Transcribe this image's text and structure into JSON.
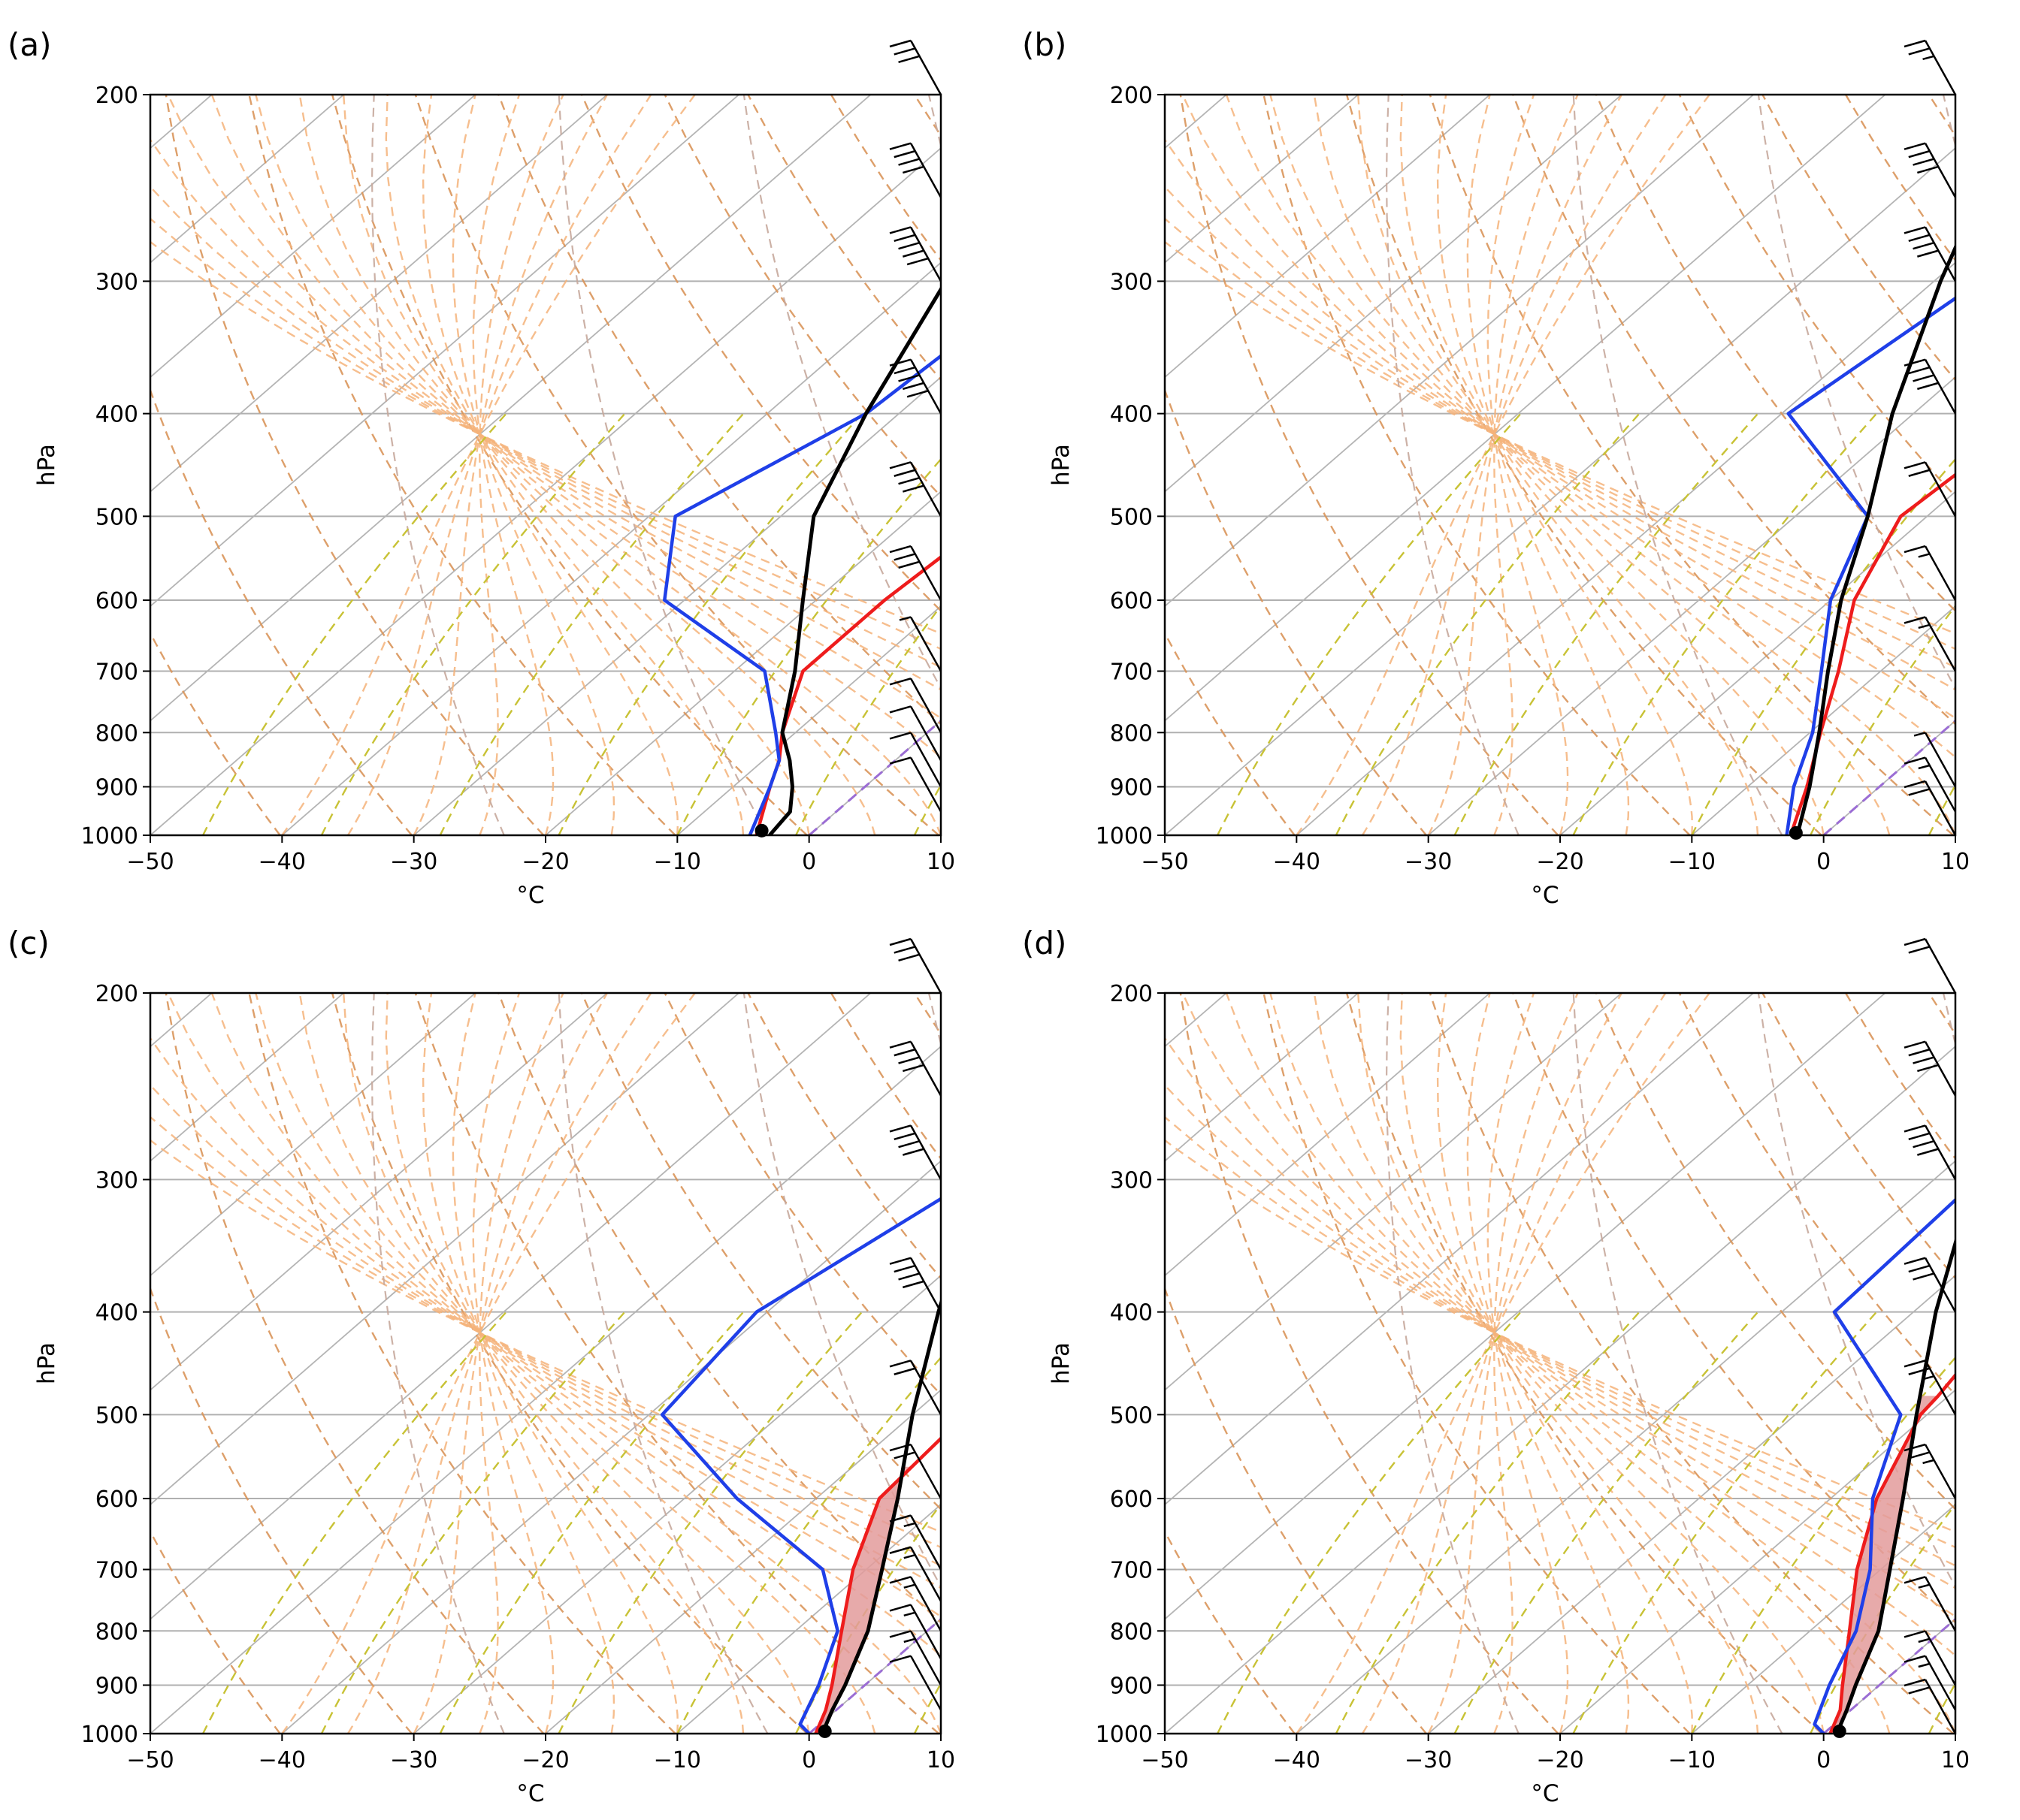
{
  "figure": {
    "description_units": {
      "x": "°C",
      "y": "hPa"
    },
    "colors": {
      "temperature": "#ee1c1c",
      "dewpoint": "#1f3fe8",
      "parcel": "#000000",
      "dry_adiabat": "#d9955a",
      "moist_adiabat": "#f5b37a",
      "mixing_ratio": "#c8c235",
      "isotherm_0": "#9b6dd4",
      "cape_fill": "#e39b9b",
      "grid": "#b0b0b0",
      "skewed_isotherm": "#b4b4b4",
      "alt_adiabat": "#c7a89c"
    }
  },
  "chart_data": [
    {
      "type": "line",
      "panel_label": "(a)",
      "title": "",
      "xlabel": "°C",
      "ylabel": "hPa",
      "xlim": [
        -50,
        10
      ],
      "ylim": [
        1000,
        200
      ],
      "xticks": [
        "−50",
        "−40",
        "−30",
        "−20",
        "−10",
        "0",
        "10"
      ],
      "yticks": [
        "200",
        "300",
        "400",
        "500",
        "600",
        "700",
        "800",
        "900",
        "1000"
      ],
      "series": [
        {
          "name": "Temperature",
          "color": "#ee1c1c",
          "points": [
            [
              1000,
              -4.0
            ],
            [
              900,
              -7.2
            ],
            [
              850,
              -8.8
            ],
            [
              800,
              -11.0
            ],
            [
              700,
              -14.8
            ],
            [
              600,
              -14.8
            ],
            [
              500,
              -13.8
            ],
            [
              400,
              -17.0
            ],
            [
              300,
              -19.7
            ],
            [
              250,
              -18.0
            ],
            [
              200,
              -9.3
            ]
          ]
        },
        {
          "name": "Dewpoint",
          "color": "#1f3fe8",
          "points": [
            [
              1000,
              -4.5
            ],
            [
              900,
              -7.2
            ],
            [
              850,
              -8.8
            ],
            [
              800,
              -11.5
            ],
            [
              700,
              -17.7
            ],
            [
              600,
              -31.5
            ],
            [
              500,
              -38.0
            ],
            [
              400,
              -32.5
            ],
            [
              300,
              -31.0
            ],
            [
              250,
              -32.6
            ],
            [
              200,
              -32.2
            ]
          ]
        },
        {
          "name": "Parcel",
          "color": "#000000",
          "points": [
            [
              1000,
              -3.0
            ],
            [
              950,
              -3.5
            ],
            [
              900,
              -5.5
            ],
            [
              850,
              -8.0
            ],
            [
              800,
              -11.0
            ],
            [
              700,
              -15.4
            ],
            [
              600,
              -21.0
            ],
            [
              500,
              -27.5
            ],
            [
              400,
              -32.5
            ],
            [
              300,
              -38.0
            ],
            [
              250,
              -40.8
            ],
            [
              200,
              -43.5
            ]
          ]
        }
      ],
      "surface_marker": {
        "pressure": 990,
        "temperature": -4.0
      },
      "cape_shading": false,
      "wind_barbs": [
        {
          "pressure": 200,
          "speed_kt": 30
        },
        {
          "pressure": 250,
          "speed_kt": 40
        },
        {
          "pressure": 300,
          "speed_kt": 50
        },
        {
          "pressure": 400,
          "speed_kt": 50
        },
        {
          "pressure": 500,
          "speed_kt": 40
        },
        {
          "pressure": 600,
          "speed_kt": 30
        },
        {
          "pressure": 700,
          "speed_kt": 5
        },
        {
          "pressure": 800,
          "speed_kt": 10
        },
        {
          "pressure": 850,
          "speed_kt": 10
        },
        {
          "pressure": 900,
          "speed_kt": 10
        },
        {
          "pressure": 950,
          "speed_kt": 10
        }
      ]
    },
    {
      "type": "line",
      "panel_label": "(b)",
      "title": "",
      "xlabel": "°C",
      "ylabel": "hPa",
      "xlim": [
        -50,
        10
      ],
      "ylim": [
        1000,
        200
      ],
      "xticks": [
        "−50",
        "−40",
        "−30",
        "−20",
        "−10",
        "0",
        "10"
      ],
      "yticks": [
        "200",
        "300",
        "400",
        "500",
        "600",
        "700",
        "800",
        "900",
        "1000"
      ],
      "series": [
        {
          "name": "Temperature",
          "color": "#ee1c1c",
          "points": [
            [
              1000,
              -2.5
            ],
            [
              900,
              -5.5
            ],
            [
              800,
              -9.2
            ],
            [
              700,
              -13.2
            ],
            [
              600,
              -18.2
            ],
            [
              500,
              -22.0
            ],
            [
              400,
              -20.7
            ],
            [
              300,
              -17.5
            ],
            [
              250,
              -13.5
            ],
            [
              200,
              -7.0
            ]
          ]
        },
        {
          "name": "Dewpoint",
          "color": "#1f3fe8",
          "points": [
            [
              1000,
              -2.8
            ],
            [
              900,
              -6.5
            ],
            [
              800,
              -9.8
            ],
            [
              700,
              -14.5
            ],
            [
              600,
              -20.0
            ],
            [
              500,
              -24.5
            ],
            [
              400,
              -39.5
            ],
            [
              300,
              -36.5
            ],
            [
              250,
              -36.0
            ],
            [
              200,
              -32.7
            ]
          ]
        },
        {
          "name": "Parcel",
          "color": "#000000",
          "points": [
            [
              1000,
              -2.0
            ],
            [
              900,
              -5.3
            ],
            [
              800,
              -9.3
            ],
            [
              700,
              -14.0
            ],
            [
              600,
              -19.2
            ],
            [
              500,
              -24.5
            ],
            [
              400,
              -31.6
            ],
            [
              300,
              -39.5
            ],
            [
              250,
              -44.0
            ],
            [
              200,
              -50.0
            ]
          ]
        }
      ],
      "surface_marker": {
        "pressure": 995,
        "temperature": -2.3
      },
      "cape_shading": false,
      "wind_barbs": [
        {
          "pressure": 200,
          "speed_kt": 25
        },
        {
          "pressure": 250,
          "speed_kt": 40
        },
        {
          "pressure": 300,
          "speed_kt": 40
        },
        {
          "pressure": 400,
          "speed_kt": 40
        },
        {
          "pressure": 500,
          "speed_kt": 20
        },
        {
          "pressure": 600,
          "speed_kt": 15
        },
        {
          "pressure": 700,
          "speed_kt": 15
        },
        {
          "pressure": 900,
          "speed_kt": 5
        },
        {
          "pressure": 950,
          "speed_kt": 15
        },
        {
          "pressure": 1000,
          "speed_kt": 20
        }
      ]
    },
    {
      "type": "line",
      "panel_label": "(c)",
      "title": "",
      "xlabel": "°C",
      "ylabel": "hPa",
      "xlim": [
        -50,
        10
      ],
      "ylim": [
        1000,
        200
      ],
      "xticks": [
        "−50",
        "−40",
        "−30",
        "−20",
        "−10",
        "0",
        "10"
      ],
      "yticks": [
        "200",
        "300",
        "400",
        "500",
        "600",
        "700",
        "800",
        "900",
        "1000"
      ],
      "series": [
        {
          "name": "Temperature",
          "color": "#ee1c1c",
          "points": [
            [
              1000,
              0.5
            ],
            [
              950,
              -0.8
            ],
            [
              900,
              -2.5
            ],
            [
              800,
              -6.5
            ],
            [
              700,
              -11.0
            ],
            [
              600,
              -15.2
            ],
            [
              500,
              -16.0
            ],
            [
              400,
              -16.3
            ],
            [
              300,
              -16.0
            ],
            [
              250,
              -13.3
            ],
            [
              200,
              -9.2
            ]
          ]
        },
        {
          "name": "Dewpoint",
          "color": "#1f3fe8",
          "points": [
            [
              1000,
              0.0
            ],
            [
              980,
              -1.5
            ],
            [
              900,
              -3.5
            ],
            [
              800,
              -6.8
            ],
            [
              700,
              -13.3
            ],
            [
              600,
              -26.0
            ],
            [
              500,
              -39.0
            ],
            [
              400,
              -40.8
            ],
            [
              300,
              -36.0
            ],
            [
              250,
              -35.2
            ],
            [
              200,
              -33.2
            ]
          ]
        },
        {
          "name": "Parcel",
          "color": "#000000",
          "points": [
            [
              1000,
              1.0
            ],
            [
              950,
              -0.3
            ],
            [
              900,
              -1.5
            ],
            [
              800,
              -4.5
            ],
            [
              700,
              -8.8
            ],
            [
              600,
              -13.8
            ],
            [
              500,
              -20.0
            ],
            [
              400,
              -27.0
            ],
            [
              300,
              -35.5
            ],
            [
              250,
              -40.5
            ],
            [
              200,
              -45.5
            ]
          ]
        }
      ],
      "surface_marker": {
        "pressure": 995,
        "temperature": 1.0
      },
      "cape_shading": true,
      "wind_barbs": [
        {
          "pressure": 200,
          "speed_kt": 30
        },
        {
          "pressure": 250,
          "speed_kt": 40
        },
        {
          "pressure": 300,
          "speed_kt": 40
        },
        {
          "pressure": 400,
          "speed_kt": 40
        },
        {
          "pressure": 500,
          "speed_kt": 20
        },
        {
          "pressure": 600,
          "speed_kt": 20
        },
        {
          "pressure": 700,
          "speed_kt": 15
        },
        {
          "pressure": 750,
          "speed_kt": 15
        },
        {
          "pressure": 800,
          "speed_kt": 15
        },
        {
          "pressure": 850,
          "speed_kt": 15
        },
        {
          "pressure": 900,
          "speed_kt": 15
        },
        {
          "pressure": 950,
          "speed_kt": 10
        }
      ]
    },
    {
      "type": "line",
      "panel_label": "(d)",
      "title": "",
      "xlabel": "°C",
      "ylabel": "hPa",
      "xlim": [
        -50,
        10
      ],
      "ylim": [
        1000,
        200
      ],
      "xticks": [
        "−50",
        "−40",
        "−30",
        "−20",
        "−10",
        "0",
        "10"
      ],
      "yticks": [
        "200",
        "300",
        "400",
        "500",
        "600",
        "700",
        "800",
        "900",
        "1000"
      ],
      "series": [
        {
          "name": "Temperature",
          "color": "#ee1c1c",
          "points": [
            [
              1000,
              0.5
            ],
            [
              950,
              -0.8
            ],
            [
              900,
              -2.8
            ],
            [
              800,
              -7.0
            ],
            [
              700,
              -11.8
            ],
            [
              600,
              -16.5
            ],
            [
              500,
              -20.5
            ],
            [
              480,
              -20.8
            ],
            [
              400,
              -22.8
            ],
            [
              300,
              -17.0
            ],
            [
              250,
              -12.0
            ],
            [
              200,
              -7.0
            ]
          ]
        },
        {
          "name": "Dewpoint",
          "color": "#1f3fe8",
          "points": [
            [
              1000,
              0.0
            ],
            [
              980,
              -1.5
            ],
            [
              900,
              -3.8
            ],
            [
              800,
              -6.5
            ],
            [
              700,
              -10.8
            ],
            [
              600,
              -16.8
            ],
            [
              500,
              -22.0
            ],
            [
              400,
              -36.0
            ],
            [
              300,
              -36.7
            ],
            [
              250,
              -36.0
            ],
            [
              200,
              -32.7
            ]
          ]
        },
        {
          "name": "Parcel",
          "color": "#000000",
          "points": [
            [
              1000,
              1.0
            ],
            [
              950,
              -0.3
            ],
            [
              900,
              -1.8
            ],
            [
              800,
              -4.8
            ],
            [
              700,
              -9.3
            ],
            [
              600,
              -14.5
            ],
            [
              500,
              -20.8
            ],
            [
              400,
              -28.3
            ],
            [
              300,
              -37.0
            ],
            [
              250,
              -41.0
            ],
            [
              200,
              -46.0
            ]
          ]
        }
      ],
      "surface_marker": {
        "pressure": 995,
        "temperature": 1.0
      },
      "cape_shading": true,
      "wind_barbs": [
        {
          "pressure": 200,
          "speed_kt": 20
        },
        {
          "pressure": 250,
          "speed_kt": 40
        },
        {
          "pressure": 300,
          "speed_kt": 40
        },
        {
          "pressure": 400,
          "speed_kt": 30
        },
        {
          "pressure": 500,
          "speed_kt": 25
        },
        {
          "pressure": 600,
          "speed_kt": 25
        },
        {
          "pressure": 800,
          "speed_kt": 15
        },
        {
          "pressure": 900,
          "speed_kt": 15
        },
        {
          "pressure": 950,
          "speed_kt": 15
        },
        {
          "pressure": 1000,
          "speed_kt": 20
        }
      ]
    }
  ]
}
